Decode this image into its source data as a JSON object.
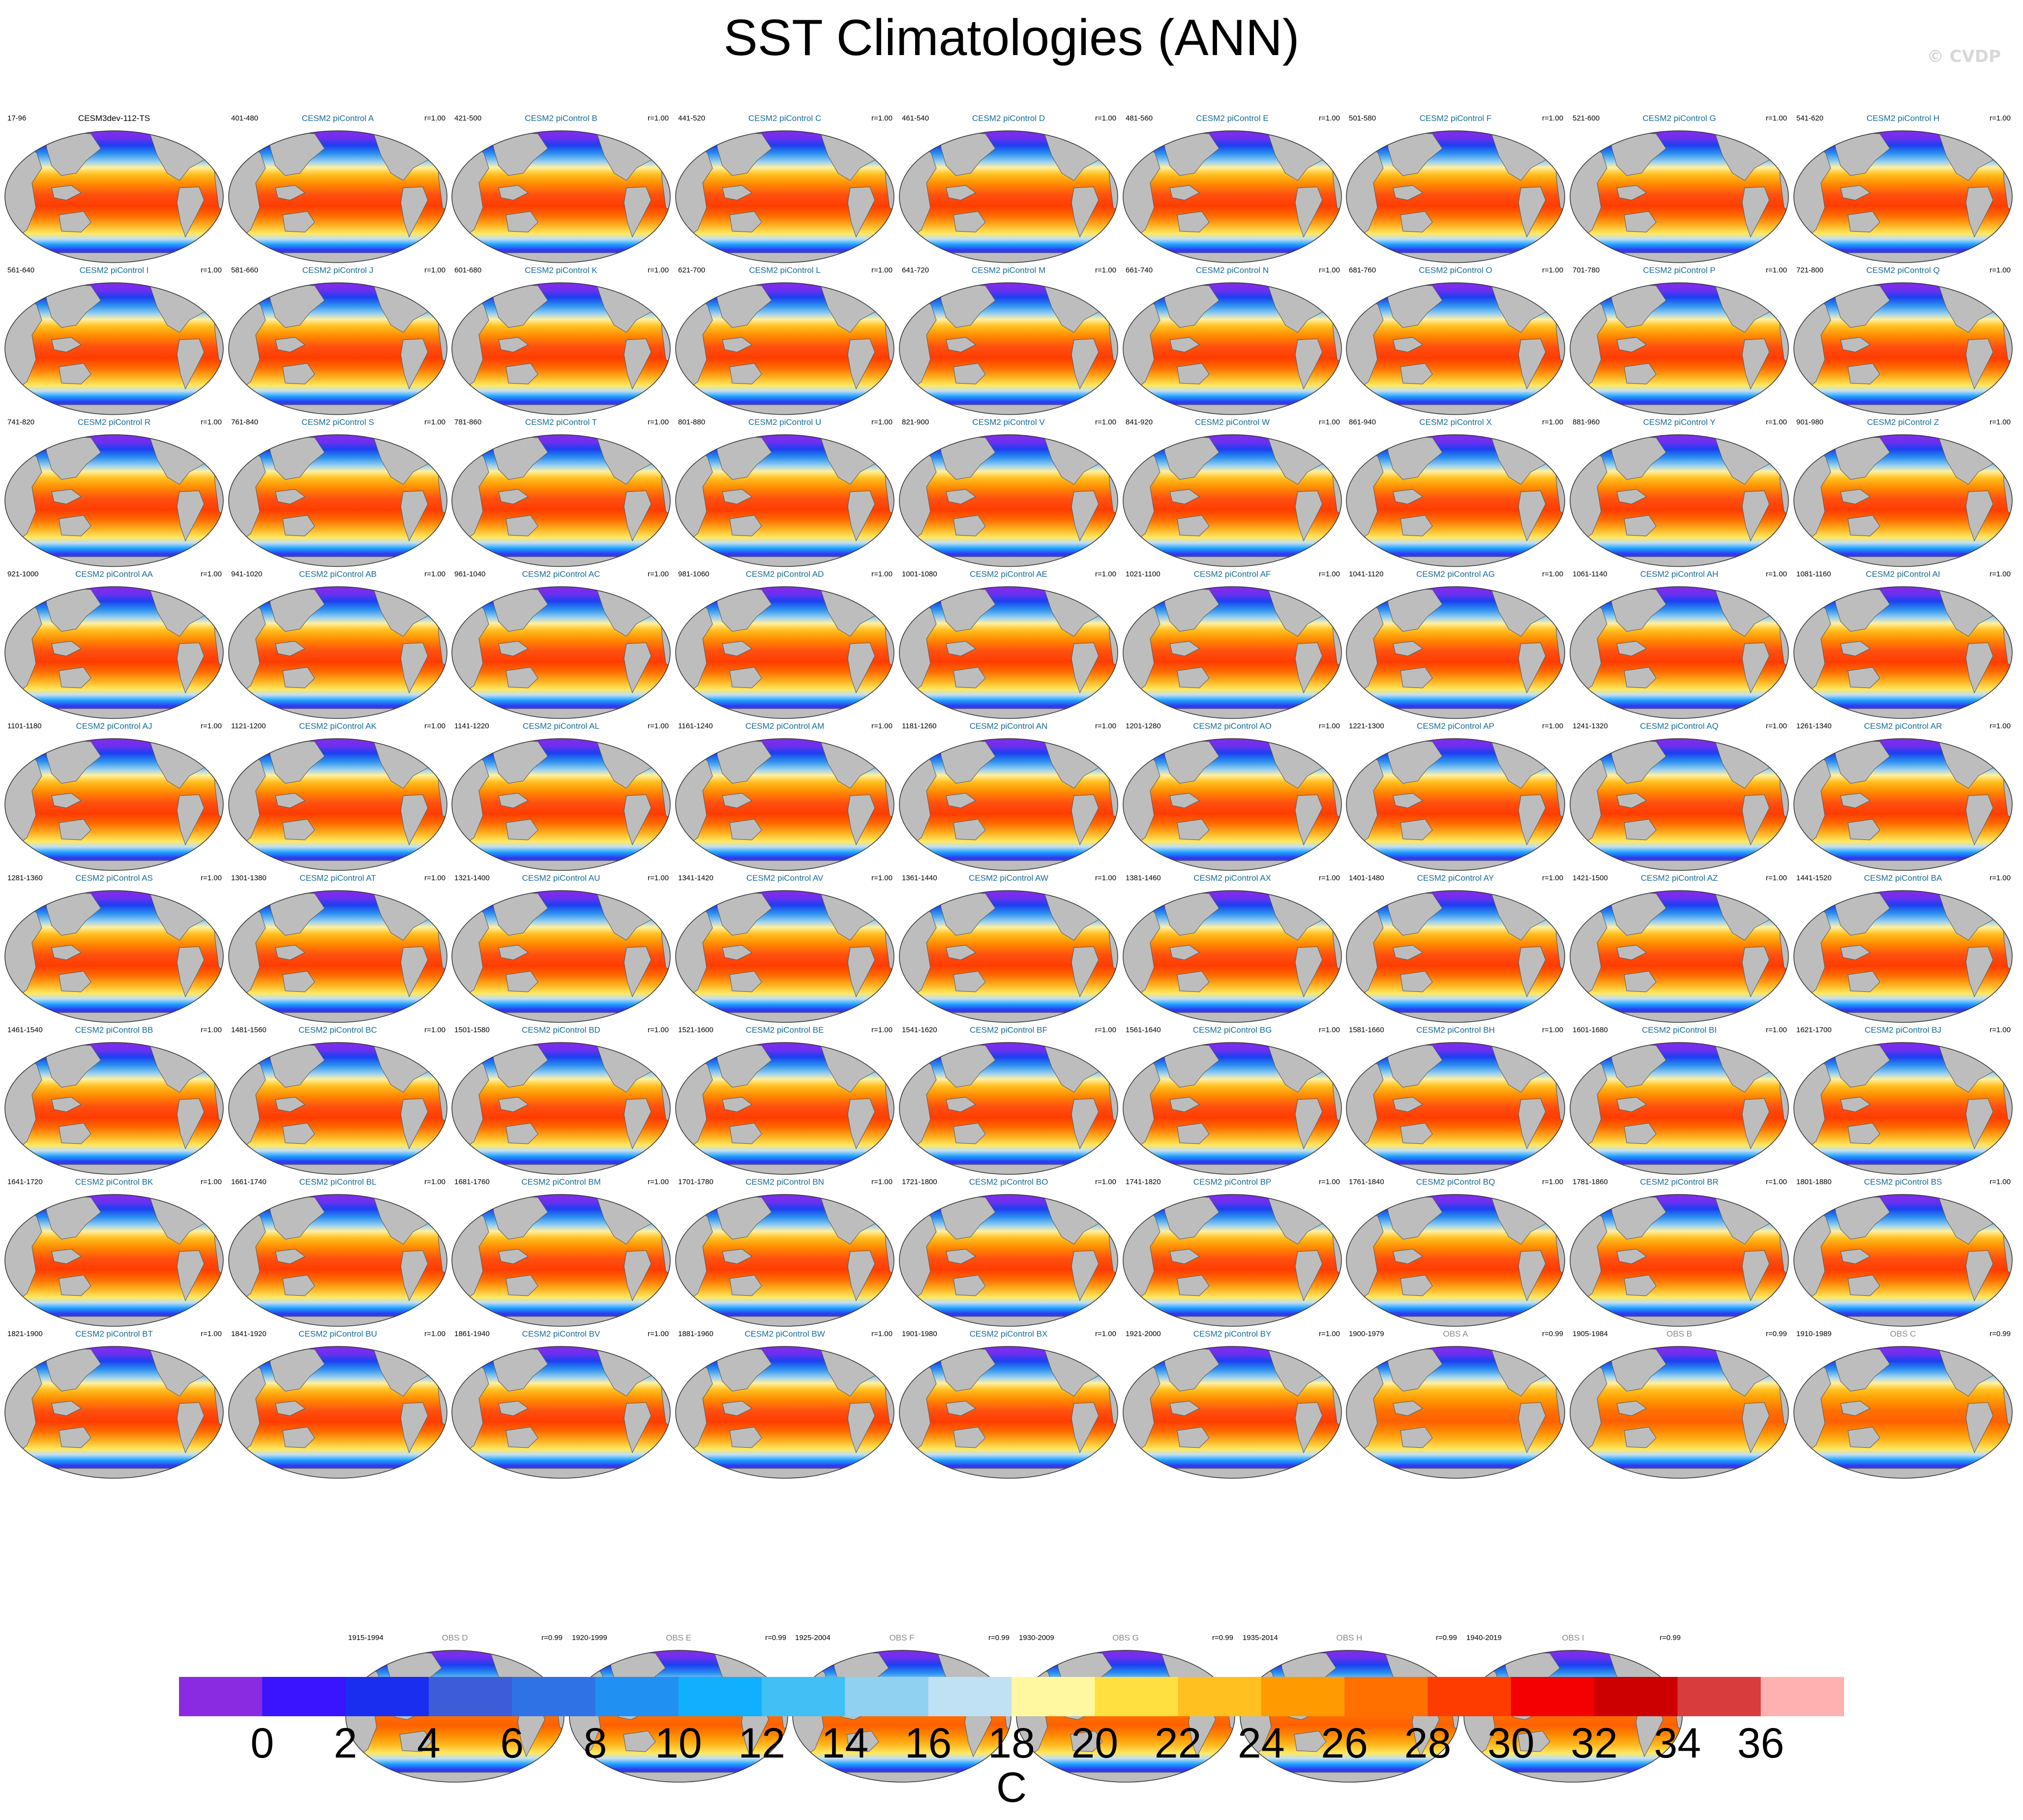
{
  "title": "SST Climatologies (ANN)",
  "copyright": "© CVDP",
  "panels": [
    {
      "left": "17-96",
      "center": "CESM3dev-112-TS",
      "right": "",
      "kind": "base"
    },
    {
      "left": "401-480",
      "center": "CESM2 piControl A",
      "right": "r=1.00",
      "kind": "model"
    },
    {
      "left": "421-500",
      "center": "CESM2 piControl B",
      "right": "r=1.00",
      "kind": "model"
    },
    {
      "left": "441-520",
      "center": "CESM2 piControl C",
      "right": "r=1.00",
      "kind": "model"
    },
    {
      "left": "461-540",
      "center": "CESM2 piControl D",
      "right": "r=1.00",
      "kind": "model"
    },
    {
      "left": "481-560",
      "center": "CESM2 piControl E",
      "right": "r=1.00",
      "kind": "model"
    },
    {
      "left": "501-580",
      "center": "CESM2 piControl F",
      "right": "r=1.00",
      "kind": "model"
    },
    {
      "left": "521-600",
      "center": "CESM2 piControl G",
      "right": "r=1.00",
      "kind": "model"
    },
    {
      "left": "541-620",
      "center": "CESM2 piControl H",
      "right": "r=1.00",
      "kind": "model"
    },
    {
      "left": "561-640",
      "center": "CESM2 piControl I",
      "right": "r=1.00",
      "kind": "model"
    },
    {
      "left": "581-660",
      "center": "CESM2 piControl J",
      "right": "r=1.00",
      "kind": "model"
    },
    {
      "left": "601-680",
      "center": "CESM2 piControl K",
      "right": "r=1.00",
      "kind": "model"
    },
    {
      "left": "621-700",
      "center": "CESM2 piControl L",
      "right": "r=1.00",
      "kind": "model"
    },
    {
      "left": "641-720",
      "center": "CESM2 piControl M",
      "right": "r=1.00",
      "kind": "model"
    },
    {
      "left": "661-740",
      "center": "CESM2 piControl N",
      "right": "r=1.00",
      "kind": "model"
    },
    {
      "left": "681-760",
      "center": "CESM2 piControl O",
      "right": "r=1.00",
      "kind": "model"
    },
    {
      "left": "701-780",
      "center": "CESM2 piControl P",
      "right": "r=1.00",
      "kind": "model"
    },
    {
      "left": "721-800",
      "center": "CESM2 piControl Q",
      "right": "r=1.00",
      "kind": "model"
    },
    {
      "left": "741-820",
      "center": "CESM2 piControl R",
      "right": "r=1.00",
      "kind": "model"
    },
    {
      "left": "761-840",
      "center": "CESM2 piControl S",
      "right": "r=1.00",
      "kind": "model"
    },
    {
      "left": "781-860",
      "center": "CESM2 piControl T",
      "right": "r=1.00",
      "kind": "model"
    },
    {
      "left": "801-880",
      "center": "CESM2 piControl U",
      "right": "r=1.00",
      "kind": "model"
    },
    {
      "left": "821-900",
      "center": "CESM2 piControl V",
      "right": "r=1.00",
      "kind": "model"
    },
    {
      "left": "841-920",
      "center": "CESM2 piControl W",
      "right": "r=1.00",
      "kind": "model"
    },
    {
      "left": "861-940",
      "center": "CESM2 piControl X",
      "right": "r=1.00",
      "kind": "model"
    },
    {
      "left": "881-960",
      "center": "CESM2 piControl Y",
      "right": "r=1.00",
      "kind": "model"
    },
    {
      "left": "901-980",
      "center": "CESM2 piControl Z",
      "right": "r=1.00",
      "kind": "model"
    },
    {
      "left": "921-1000",
      "center": "CESM2 piControl AA",
      "right": "r=1.00",
      "kind": "model"
    },
    {
      "left": "941-1020",
      "center": "CESM2 piControl AB",
      "right": "r=1.00",
      "kind": "model"
    },
    {
      "left": "961-1040",
      "center": "CESM2 piControl AC",
      "right": "r=1.00",
      "kind": "model"
    },
    {
      "left": "981-1060",
      "center": "CESM2 piControl AD",
      "right": "r=1.00",
      "kind": "model"
    },
    {
      "left": "1001-1080",
      "center": "CESM2 piControl AE",
      "right": "r=1.00",
      "kind": "model"
    },
    {
      "left": "1021-1100",
      "center": "CESM2 piControl AF",
      "right": "r=1.00",
      "kind": "model"
    },
    {
      "left": "1041-1120",
      "center": "CESM2 piControl AG",
      "right": "r=1.00",
      "kind": "model"
    },
    {
      "left": "1061-1140",
      "center": "CESM2 piControl AH",
      "right": "r=1.00",
      "kind": "model"
    },
    {
      "left": "1081-1160",
      "center": "CESM2 piControl AI",
      "right": "r=1.00",
      "kind": "model"
    },
    {
      "left": "1101-1180",
      "center": "CESM2 piControl AJ",
      "right": "r=1.00",
      "kind": "model"
    },
    {
      "left": "1121-1200",
      "center": "CESM2 piControl AK",
      "right": "r=1.00",
      "kind": "model"
    },
    {
      "left": "1141-1220",
      "center": "CESM2 piControl AL",
      "right": "r=1.00",
      "kind": "model"
    },
    {
      "left": "1161-1240",
      "center": "CESM2 piControl AM",
      "right": "r=1.00",
      "kind": "model"
    },
    {
      "left": "1181-1260",
      "center": "CESM2 piControl AN",
      "right": "r=1.00",
      "kind": "model"
    },
    {
      "left": "1201-1280",
      "center": "CESM2 piControl AO",
      "right": "r=1.00",
      "kind": "model"
    },
    {
      "left": "1221-1300",
      "center": "CESM2 piControl AP",
      "right": "r=1.00",
      "kind": "model"
    },
    {
      "left": "1241-1320",
      "center": "CESM2 piControl AQ",
      "right": "r=1.00",
      "kind": "model"
    },
    {
      "left": "1261-1340",
      "center": "CESM2 piControl AR",
      "right": "r=1.00",
      "kind": "model"
    },
    {
      "left": "1281-1360",
      "center": "CESM2 piControl AS",
      "right": "r=1.00",
      "kind": "model"
    },
    {
      "left": "1301-1380",
      "center": "CESM2 piControl AT",
      "right": "r=1.00",
      "kind": "model"
    },
    {
      "left": "1321-1400",
      "center": "CESM2 piControl AU",
      "right": "r=1.00",
      "kind": "model"
    },
    {
      "left": "1341-1420",
      "center": "CESM2 piControl AV",
      "right": "r=1.00",
      "kind": "model"
    },
    {
      "left": "1361-1440",
      "center": "CESM2 piControl AW",
      "right": "r=1.00",
      "kind": "model"
    },
    {
      "left": "1381-1460",
      "center": "CESM2 piControl AX",
      "right": "r=1.00",
      "kind": "model"
    },
    {
      "left": "1401-1480",
      "center": "CESM2 piControl AY",
      "right": "r=1.00",
      "kind": "model"
    },
    {
      "left": "1421-1500",
      "center": "CESM2 piControl AZ",
      "right": "r=1.00",
      "kind": "model"
    },
    {
      "left": "1441-1520",
      "center": "CESM2 piControl BA",
      "right": "r=1.00",
      "kind": "model"
    },
    {
      "left": "1461-1540",
      "center": "CESM2 piControl BB",
      "right": "r=1.00",
      "kind": "model"
    },
    {
      "left": "1481-1560",
      "center": "CESM2 piControl BC",
      "right": "r=1.00",
      "kind": "model"
    },
    {
      "left": "1501-1580",
      "center": "CESM2 piControl BD",
      "right": "r=1.00",
      "kind": "model"
    },
    {
      "left": "1521-1600",
      "center": "CESM2 piControl BE",
      "right": "r=1.00",
      "kind": "model"
    },
    {
      "left": "1541-1620",
      "center": "CESM2 piControl BF",
      "right": "r=1.00",
      "kind": "model"
    },
    {
      "left": "1561-1640",
      "center": "CESM2 piControl BG",
      "right": "r=1.00",
      "kind": "model"
    },
    {
      "left": "1581-1660",
      "center": "CESM2 piControl BH",
      "right": "r=1.00",
      "kind": "model"
    },
    {
      "left": "1601-1680",
      "center": "CESM2 piControl BI",
      "right": "r=1.00",
      "kind": "model"
    },
    {
      "left": "1621-1700",
      "center": "CESM2 piControl BJ",
      "right": "r=1.00",
      "kind": "model"
    },
    {
      "left": "1641-1720",
      "center": "CESM2 piControl BK",
      "right": "r=1.00",
      "kind": "model"
    },
    {
      "left": "1661-1740",
      "center": "CESM2 piControl BL",
      "right": "r=1.00",
      "kind": "model"
    },
    {
      "left": "1681-1760",
      "center": "CESM2 piControl BM",
      "right": "r=1.00",
      "kind": "model"
    },
    {
      "left": "1701-1780",
      "center": "CESM2 piControl BN",
      "right": "r=1.00",
      "kind": "model"
    },
    {
      "left": "1721-1800",
      "center": "CESM2 piControl BO",
      "right": "r=1.00",
      "kind": "model"
    },
    {
      "left": "1741-1820",
      "center": "CESM2 piControl BP",
      "right": "r=1.00",
      "kind": "model"
    },
    {
      "left": "1761-1840",
      "center": "CESM2 piControl BQ",
      "right": "r=1.00",
      "kind": "model"
    },
    {
      "left": "1781-1860",
      "center": "CESM2 piControl BR",
      "right": "r=1.00",
      "kind": "model"
    },
    {
      "left": "1801-1880",
      "center": "CESM2 piControl BS",
      "right": "r=1.00",
      "kind": "model"
    },
    {
      "left": "1821-1900",
      "center": "CESM2 piControl BT",
      "right": "r=1.00",
      "kind": "model"
    },
    {
      "left": "1841-1920",
      "center": "CESM2 piControl BU",
      "right": "r=1.00",
      "kind": "model"
    },
    {
      "left": "1861-1940",
      "center": "CESM2 piControl BV",
      "right": "r=1.00",
      "kind": "model"
    },
    {
      "left": "1881-1960",
      "center": "CESM2 piControl BW",
      "right": "r=1.00",
      "kind": "model"
    },
    {
      "left": "1901-1980",
      "center": "CESM2 piControl BX",
      "right": "r=1.00",
      "kind": "model"
    },
    {
      "left": "1921-2000",
      "center": "CESM2 piControl BY",
      "right": "r=1.00",
      "kind": "model"
    },
    {
      "left": "1900-1979",
      "center": "OBS A",
      "right": "r=0.99",
      "kind": "obs"
    },
    {
      "left": "1905-1984",
      "center": "OBS B",
      "right": "r=0.99",
      "kind": "obs"
    },
    {
      "left": "1910-1989",
      "center": "OBS C",
      "right": "r=0.99",
      "kind": "obs"
    },
    {
      "left": "1915-1994",
      "center": "OBS D",
      "right": "r=0.99",
      "kind": "obs"
    },
    {
      "left": "1920-1999",
      "center": "OBS E",
      "right": "r=0.99",
      "kind": "obs"
    },
    {
      "left": "1925-2004",
      "center": "OBS F",
      "right": "r=0.99",
      "kind": "obs"
    },
    {
      "left": "1930-2009",
      "center": "OBS G",
      "right": "r=0.99",
      "kind": "obs"
    },
    {
      "left": "1935-2014",
      "center": "OBS H",
      "right": "r=0.99",
      "kind": "obs"
    },
    {
      "left": "1940-2019",
      "center": "OBS I",
      "right": "r=0.99",
      "kind": "obs"
    }
  ],
  "colorbar": {
    "unit": "C",
    "ticks": [
      "0",
      "2",
      "4",
      "6",
      "8",
      "10",
      "12",
      "14",
      "16",
      "18",
      "20",
      "22",
      "24",
      "26",
      "28",
      "30",
      "32",
      "34",
      "36"
    ],
    "colors": [
      "#8a2be2",
      "#3a14ff",
      "#1a2ef0",
      "#3c5cd8",
      "#2f72e6",
      "#2090f2",
      "#10b0ff",
      "#40c0f4",
      "#90d0f0",
      "#c0e0f4",
      "#fff8a0",
      "#ffe040",
      "#ffc020",
      "#ff9a00",
      "#ff7000",
      "#ff3c00",
      "#f40000",
      "#cc0000",
      "#d83c3c",
      "#ffb0b0"
    ]
  }
}
